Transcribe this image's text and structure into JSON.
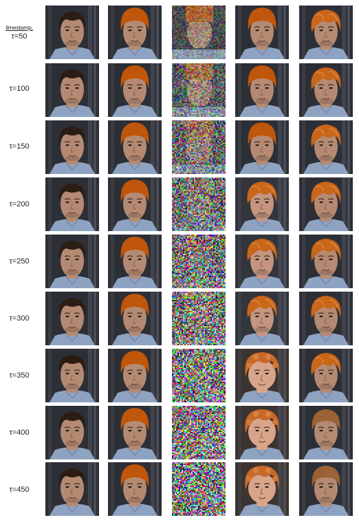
{
  "header_label": {
    "line1": "timestamp,",
    "line2": "τ=50"
  },
  "rows": [
    {
      "label": "τ=100"
    },
    {
      "label": "τ=150"
    },
    {
      "label": "τ=200"
    },
    {
      "label": "τ=250"
    },
    {
      "label": "τ=300"
    },
    {
      "label": "τ=350"
    },
    {
      "label": "τ=400"
    },
    {
      "label": "τ=450"
    }
  ],
  "columns": [
    {
      "kind": "original-face"
    },
    {
      "kind": "orange-cap-overlay"
    },
    {
      "kind": "noised"
    },
    {
      "kind": "denoised-output"
    },
    {
      "kind": "blended-output"
    }
  ],
  "levels": {
    "noise": [
      0.35,
      0.55,
      0.68,
      0.78,
      0.85,
      0.9,
      0.94,
      0.97,
      0.99
    ],
    "generation_drift": [
      0.0,
      0.05,
      0.12,
      0.3,
      0.45,
      0.6,
      0.8,
      0.9,
      1.0
    ]
  },
  "colors": {
    "hair_orange": "#c0560a",
    "hair_dark": "#2b1d14",
    "skin": "#b58a72",
    "shirt": "#8ea3c2",
    "background": "#2d2f36"
  }
}
